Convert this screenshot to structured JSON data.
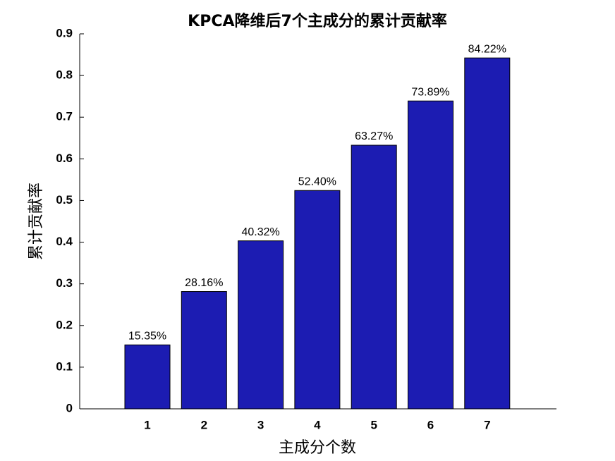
{
  "chart_data": {
    "type": "bar",
    "title": "KPCA降维后7个主成分的累计贡献率",
    "xlabel": "主成分个数",
    "ylabel": "累计贡献率",
    "categories": [
      "1",
      "2",
      "3",
      "4",
      "5",
      "6",
      "7"
    ],
    "values": [
      0.1535,
      0.2816,
      0.4032,
      0.524,
      0.6327,
      0.7389,
      0.8422
    ],
    "value_labels": [
      "15.35%",
      "28.16%",
      "40.32%",
      "52.40%",
      "63.27%",
      "73.89%",
      "84.22%"
    ],
    "color": "#1c1cb2",
    "ylim": [
      0,
      0.9
    ],
    "yticks": [
      0,
      0.1,
      0.2,
      0.3,
      0.4,
      0.5,
      0.6,
      0.7,
      0.8,
      0.9
    ]
  }
}
